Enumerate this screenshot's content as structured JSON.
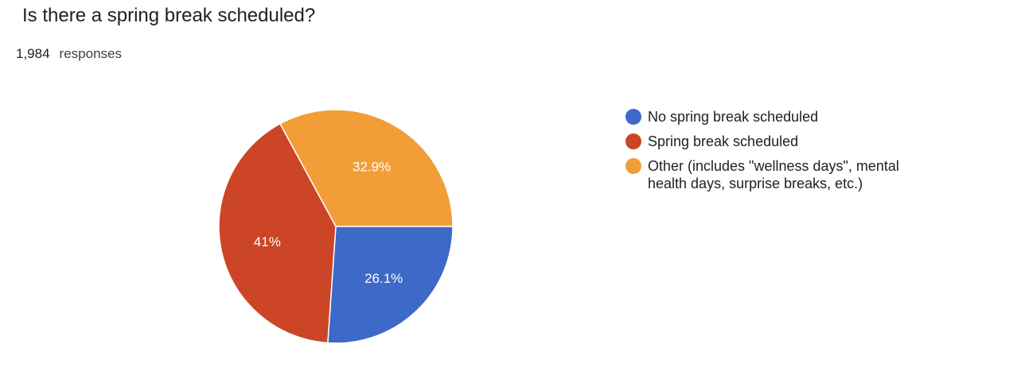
{
  "chart_data": {
    "type": "pie",
    "title": "Is there a spring break scheduled?",
    "response_count": {
      "value": 1984,
      "label": "1,984"
    },
    "response_label": "responses",
    "categories": [
      "No spring break scheduled",
      "Spring break scheduled",
      "Other (includes \"wellness days\", mental health days, surprise breaks, etc.)"
    ],
    "values": [
      26.1,
      41,
      32.9
    ],
    "value_labels": [
      "26.1%",
      "41%",
      "32.9%"
    ],
    "colors": [
      "#3d69c8",
      "#cc4526",
      "#f29e38"
    ],
    "legend": "right"
  }
}
